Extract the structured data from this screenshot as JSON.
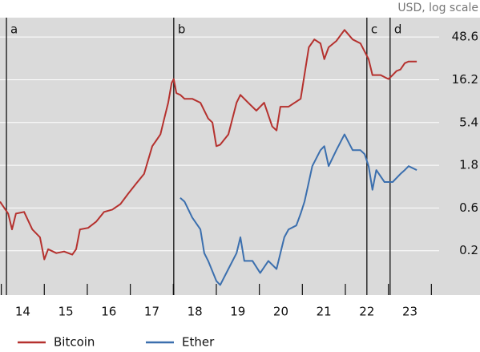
{
  "chart_data": {
    "type": "line",
    "subtitle": "USD, log scale",
    "log_scale": true,
    "grid": true,
    "legend": "bottom-left",
    "xlim": [
      2013.97,
      2024.18
    ],
    "ylim": [
      0.064,
      80
    ],
    "yticks": [
      48.6,
      16.2,
      5.4,
      1.8,
      0.6,
      0.2
    ],
    "xticks": [
      {
        "value": 2014.5,
        "label": "14"
      },
      {
        "value": 2015.5,
        "label": "15"
      },
      {
        "value": 2016.5,
        "label": "16"
      },
      {
        "value": 2017.5,
        "label": "17"
      },
      {
        "value": 2018.5,
        "label": "18"
      },
      {
        "value": 2019.5,
        "label": "19"
      },
      {
        "value": 2020.5,
        "label": "20"
      },
      {
        "value": 2021.5,
        "label": "21"
      },
      {
        "value": 2022.5,
        "label": "22"
      },
      {
        "value": 2023.5,
        "label": "23"
      }
    ],
    "events": [
      {
        "label": "a",
        "x": 2014.12
      },
      {
        "label": "b",
        "x": 2018.01
      },
      {
        "label": "c",
        "x": 2022.5
      },
      {
        "label": "d",
        "x": 2023.04
      }
    ],
    "series": [
      {
        "name": "Bitcoin",
        "color": "#b5312e",
        "x": [
          2013.97,
          2014.16,
          2014.25,
          2014.34,
          2014.53,
          2014.72,
          2014.9,
          2015.0,
          2015.09,
          2015.28,
          2015.46,
          2015.65,
          2015.74,
          2015.83,
          2016.02,
          2016.21,
          2016.39,
          2016.58,
          2016.77,
          2016.95,
          2017.14,
          2017.32,
          2017.51,
          2017.6,
          2017.7,
          2017.79,
          2017.88,
          2017.96,
          2018.01,
          2018.07,
          2018.16,
          2018.26,
          2018.44,
          2018.63,
          2018.81,
          2018.91,
          2019.0,
          2019.09,
          2019.28,
          2019.47,
          2019.56,
          2019.74,
          2019.93,
          2020.11,
          2020.3,
          2020.4,
          2020.49,
          2020.68,
          2020.96,
          2021.15,
          2021.28,
          2021.42,
          2021.51,
          2021.61,
          2021.79,
          2021.98,
          2022.17,
          2022.35,
          2022.54,
          2022.63,
          2022.82,
          2023.0,
          2023.1,
          2023.19,
          2023.28,
          2023.38,
          2023.47,
          2023.66
        ],
        "values": [
          0.706,
          0.52,
          0.346,
          0.52,
          0.542,
          0.346,
          0.283,
          0.16,
          0.208,
          0.188,
          0.196,
          0.181,
          0.208,
          0.346,
          0.36,
          0.424,
          0.542,
          0.576,
          0.664,
          0.866,
          1.13,
          1.44,
          2.94,
          3.38,
          3.98,
          5.98,
          8.98,
          14.9,
          16.5,
          11.5,
          11.0,
          9.94,
          9.94,
          8.98,
          5.98,
          5.4,
          2.94,
          3.06,
          3.98,
          8.98,
          11.0,
          8.98,
          7.33,
          8.98,
          4.88,
          4.4,
          8.11,
          8.11,
          9.94,
          37.3,
          45.7,
          41.3,
          27.5,
          37.3,
          43.9,
          58.4,
          45.7,
          41.3,
          27.5,
          18.3,
          18.3,
          16.5,
          18.3,
          20.3,
          21.1,
          24.8,
          25.9,
          25.9
        ]
      },
      {
        "name": "Ether",
        "color": "#3b6fae",
        "x": [
          2018.16,
          2018.26,
          2018.44,
          2018.63,
          2018.72,
          2018.81,
          2019.0,
          2019.09,
          2019.28,
          2019.47,
          2019.56,
          2019.65,
          2019.84,
          2020.02,
          2020.21,
          2020.4,
          2020.58,
          2020.68,
          2020.86,
          2020.96,
          2021.05,
          2021.15,
          2021.23,
          2021.42,
          2021.51,
          2021.61,
          2021.79,
          2021.98,
          2022.17,
          2022.35,
          2022.45,
          2022.54,
          2022.63,
          2022.72,
          2022.91,
          2023.1,
          2023.28,
          2023.38,
          2023.47,
          2023.66
        ],
        "values": [
          0.78,
          0.706,
          0.47,
          0.346,
          0.188,
          0.154,
          0.092,
          0.083,
          0.125,
          0.188,
          0.283,
          0.154,
          0.154,
          0.113,
          0.154,
          0.125,
          0.283,
          0.346,
          0.383,
          0.52,
          0.706,
          1.17,
          1.76,
          2.65,
          2.94,
          1.76,
          2.65,
          3.98,
          2.65,
          2.65,
          2.39,
          1.76,
          0.958,
          1.59,
          1.17,
          1.17,
          1.44,
          1.59,
          1.76,
          1.59
        ]
      }
    ]
  }
}
